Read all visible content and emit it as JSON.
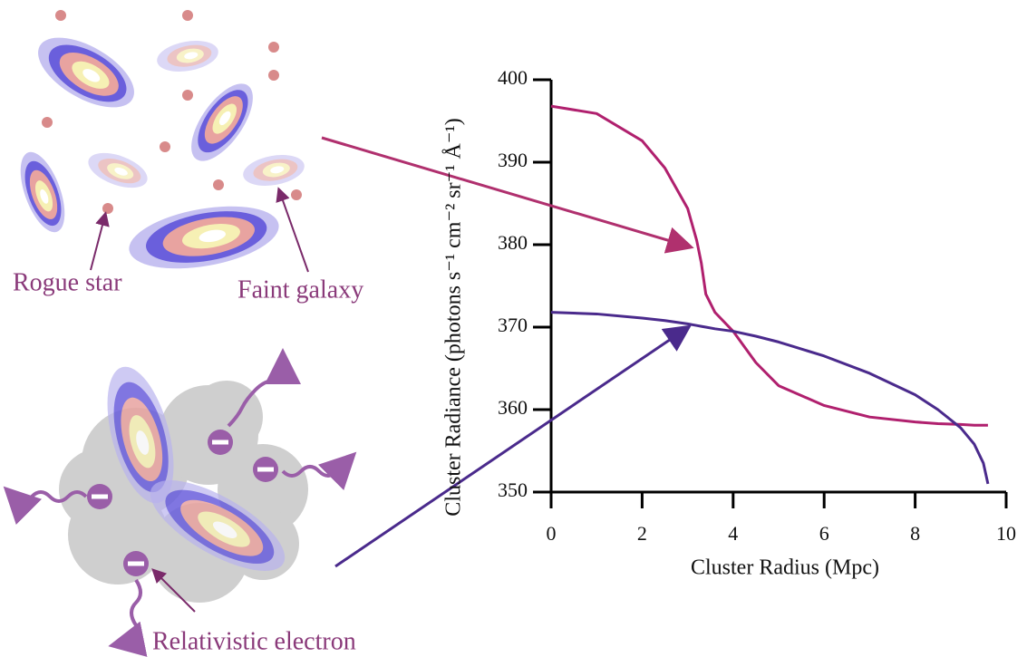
{
  "chart_data": {
    "type": "line",
    "x_label": "Cluster Radius (Mpc)",
    "y_label": "Cluster Radiance (photons s⁻¹ cm⁻² sr⁻¹ Å⁻¹)",
    "annotations": [
      "Rogue star",
      "Faint galaxy",
      "Relativistic electron"
    ],
    "x": [
      0,
      1,
      2,
      2.5,
      3,
      3.2,
      3.3,
      3.4,
      3.6,
      4,
      4.5,
      5,
      6,
      7,
      8,
      8.5,
      9,
      9.3,
      9.5,
      9.6
    ],
    "series": [
      {
        "color": "#b0206e",
        "values": [
          396.8,
          395.9,
          392.6,
          389.3,
          384.4,
          380.5,
          377.8,
          374.0,
          371.8,
          369.5,
          365.7,
          362.9,
          360.5,
          359.1,
          358.5,
          358.3,
          358.2,
          358.1,
          358.1,
          358.1
        ]
      },
      {
        "color": "#4a2a8c",
        "values": [
          371.8,
          371.6,
          371.1,
          370.8,
          370.4,
          370.2,
          370.1,
          370.0,
          369.8,
          369.5,
          368.9,
          368.2,
          366.5,
          364.4,
          361.8,
          360.0,
          357.8,
          355.8,
          353.5,
          351.0
        ]
      }
    ],
    "xlim": [
      0,
      10
    ],
    "xticks": [
      0,
      2,
      4,
      6,
      8,
      10
    ],
    "ylim": [
      350,
      400
    ],
    "yticks": [
      350,
      360,
      370,
      380,
      390,
      400
    ]
  }
}
